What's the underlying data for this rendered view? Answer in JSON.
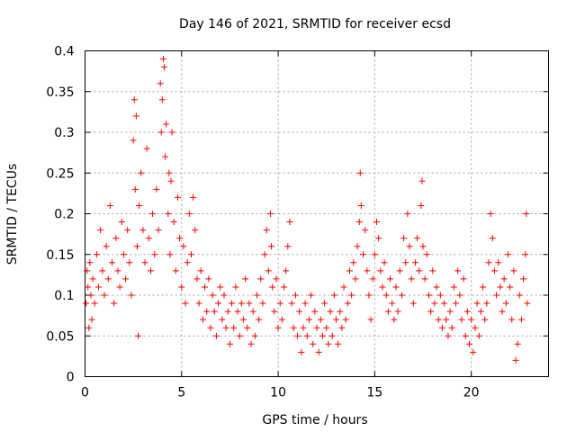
{
  "chart_data": {
    "type": "scatter",
    "title": "Day 146 of 2021, SRMTID for receiver ecsd",
    "xlabel": "GPS time / hours",
    "ylabel": "SRMTID / TECUs",
    "xlim": [
      0,
      24
    ],
    "ylim": [
      0,
      0.4
    ],
    "x_ticks": [
      0,
      5,
      10,
      15,
      20
    ],
    "x_tick_labels": [
      "0",
      "5",
      "10",
      "15",
      "20"
    ],
    "y_ticks": [
      0,
      0.05,
      0.1,
      0.15,
      0.2,
      0.25,
      0.3,
      0.35,
      0.4
    ],
    "y_tick_labels": [
      "0",
      "0.05",
      "0.1",
      "0.15",
      "0.2",
      "0.25",
      "0.3",
      "0.35",
      "0.4"
    ],
    "grid": true,
    "marker": "+",
    "color": "#ff0000",
    "series": [
      {
        "name": "SRMTID",
        "points": [
          [
            0.05,
            0.09
          ],
          [
            0.1,
            0.13
          ],
          [
            0.15,
            0.11
          ],
          [
            0.2,
            0.06
          ],
          [
            0.25,
            0.14
          ],
          [
            0.3,
            0.1
          ],
          [
            0.35,
            0.07
          ],
          [
            0.4,
            0.12
          ],
          [
            0.5,
            0.09
          ],
          [
            0.6,
            0.15
          ],
          [
            0.7,
            0.11
          ],
          [
            0.8,
            0.18
          ],
          [
            0.9,
            0.13
          ],
          [
            1.0,
            0.1
          ],
          [
            1.1,
            0.16
          ],
          [
            1.2,
            0.12
          ],
          [
            1.3,
            0.21
          ],
          [
            1.4,
            0.14
          ],
          [
            1.5,
            0.09
          ],
          [
            1.6,
            0.17
          ],
          [
            1.7,
            0.13
          ],
          [
            1.8,
            0.11
          ],
          [
            1.9,
            0.19
          ],
          [
            2.0,
            0.15
          ],
          [
            2.1,
            0.12
          ],
          [
            2.2,
            0.18
          ],
          [
            2.3,
            0.14
          ],
          [
            2.4,
            0.1
          ],
          [
            2.5,
            0.29
          ],
          [
            2.55,
            0.34
          ],
          [
            2.6,
            0.23
          ],
          [
            2.65,
            0.32
          ],
          [
            2.7,
            0.16
          ],
          [
            2.75,
            0.05
          ],
          [
            2.8,
            0.21
          ],
          [
            2.9,
            0.25
          ],
          [
            3.0,
            0.18
          ],
          [
            3.1,
            0.14
          ],
          [
            3.2,
            0.28
          ],
          [
            3.3,
            0.17
          ],
          [
            3.4,
            0.13
          ],
          [
            3.5,
            0.2
          ],
          [
            3.6,
            0.15
          ],
          [
            3.7,
            0.23
          ],
          [
            3.8,
            0.18
          ],
          [
            3.9,
            0.36
          ],
          [
            3.95,
            0.3
          ],
          [
            4.0,
            0.34
          ],
          [
            4.05,
            0.39
          ],
          [
            4.1,
            0.38
          ],
          [
            4.15,
            0.27
          ],
          [
            4.2,
            0.31
          ],
          [
            4.3,
            0.2
          ],
          [
            4.35,
            0.25
          ],
          [
            4.4,
            0.15
          ],
          [
            4.45,
            0.24
          ],
          [
            4.5,
            0.3
          ],
          [
            4.6,
            0.19
          ],
          [
            4.7,
            0.13
          ],
          [
            4.8,
            0.22
          ],
          [
            4.9,
            0.17
          ],
          [
            5.0,
            0.11
          ],
          [
            5.1,
            0.16
          ],
          [
            5.2,
            0.09
          ],
          [
            5.3,
            0.14
          ],
          [
            5.4,
            0.2
          ],
          [
            5.5,
            0.15
          ],
          [
            5.6,
            0.22
          ],
          [
            5.7,
            0.18
          ],
          [
            5.8,
            0.12
          ],
          [
            5.9,
            0.09
          ],
          [
            6.0,
            0.13
          ],
          [
            6.1,
            0.07
          ],
          [
            6.2,
            0.11
          ],
          [
            6.3,
            0.08
          ],
          [
            6.4,
            0.12
          ],
          [
            6.5,
            0.06
          ],
          [
            6.6,
            0.1
          ],
          [
            6.7,
            0.08
          ],
          [
            6.8,
            0.05
          ],
          [
            6.9,
            0.09
          ],
          [
            7.0,
            0.11
          ],
          [
            7.1,
            0.07
          ],
          [
            7.2,
            0.1
          ],
          [
            7.3,
            0.06
          ],
          [
            7.4,
            0.08
          ],
          [
            7.5,
            0.04
          ],
          [
            7.6,
            0.09
          ],
          [
            7.7,
            0.06
          ],
          [
            7.8,
            0.11
          ],
          [
            7.9,
            0.08
          ],
          [
            8.0,
            0.05
          ],
          [
            8.1,
            0.09
          ],
          [
            8.2,
            0.07
          ],
          [
            8.3,
            0.12
          ],
          [
            8.4,
            0.06
          ],
          [
            8.5,
            0.09
          ],
          [
            8.6,
            0.04
          ],
          [
            8.7,
            0.08
          ],
          [
            8.8,
            0.05
          ],
          [
            8.9,
            0.1
          ],
          [
            9.0,
            0.07
          ],
          [
            9.1,
            0.12
          ],
          [
            9.2,
            0.09
          ],
          [
            9.3,
            0.15
          ],
          [
            9.4,
            0.18
          ],
          [
            9.5,
            0.13
          ],
          [
            9.6,
            0.2
          ],
          [
            9.65,
            0.16
          ],
          [
            9.7,
            0.11
          ],
          [
            9.8,
            0.08
          ],
          [
            9.9,
            0.12
          ],
          [
            10.0,
            0.06
          ],
          [
            10.1,
            0.09
          ],
          [
            10.2,
            0.07
          ],
          [
            10.3,
            0.11
          ],
          [
            10.4,
            0.13
          ],
          [
            10.5,
            0.16
          ],
          [
            10.6,
            0.19
          ],
          [
            10.7,
            0.09
          ],
          [
            10.8,
            0.06
          ],
          [
            10.9,
            0.1
          ],
          [
            11.0,
            0.05
          ],
          [
            11.1,
            0.08
          ],
          [
            11.2,
            0.03
          ],
          [
            11.3,
            0.06
          ],
          [
            11.4,
            0.09
          ],
          [
            11.5,
            0.05
          ],
          [
            11.6,
            0.07
          ],
          [
            11.7,
            0.1
          ],
          [
            11.8,
            0.04
          ],
          [
            11.9,
            0.08
          ],
          [
            12.0,
            0.06
          ],
          [
            12.1,
            0.03
          ],
          [
            12.2,
            0.07
          ],
          [
            12.3,
            0.05
          ],
          [
            12.4,
            0.09
          ],
          [
            12.5,
            0.06
          ],
          [
            12.6,
            0.04
          ],
          [
            12.7,
            0.08
          ],
          [
            12.8,
            0.05
          ],
          [
            12.9,
            0.1
          ],
          [
            13.0,
            0.07
          ],
          [
            13.1,
            0.04
          ],
          [
            13.2,
            0.08
          ],
          [
            13.3,
            0.06
          ],
          [
            13.4,
            0.11
          ],
          [
            13.5,
            0.07
          ],
          [
            13.6,
            0.09
          ],
          [
            13.7,
            0.13
          ],
          [
            13.8,
            0.1
          ],
          [
            13.9,
            0.14
          ],
          [
            14.0,
            0.12
          ],
          [
            14.1,
            0.16
          ],
          [
            14.2,
            0.19
          ],
          [
            14.25,
            0.25
          ],
          [
            14.3,
            0.21
          ],
          [
            14.4,
            0.15
          ],
          [
            14.5,
            0.18
          ],
          [
            14.6,
            0.13
          ],
          [
            14.7,
            0.1
          ],
          [
            14.8,
            0.07
          ],
          [
            14.9,
            0.12
          ],
          [
            15.0,
            0.15
          ],
          [
            15.1,
            0.19
          ],
          [
            15.2,
            0.17
          ],
          [
            15.3,
            0.13
          ],
          [
            15.4,
            0.11
          ],
          [
            15.5,
            0.14
          ],
          [
            15.6,
            0.1
          ],
          [
            15.7,
            0.08
          ],
          [
            15.8,
            0.12
          ],
          [
            15.9,
            0.09
          ],
          [
            16.0,
            0.07
          ],
          [
            16.1,
            0.11
          ],
          [
            16.2,
            0.08
          ],
          [
            16.3,
            0.13
          ],
          [
            16.4,
            0.1
          ],
          [
            16.5,
            0.17
          ],
          [
            16.6,
            0.14
          ],
          [
            16.7,
            0.2
          ],
          [
            16.8,
            0.16
          ],
          [
            16.9,
            0.12
          ],
          [
            17.0,
            0.09
          ],
          [
            17.1,
            0.14
          ],
          [
            17.2,
            0.17
          ],
          [
            17.3,
            0.13
          ],
          [
            17.4,
            0.21
          ],
          [
            17.45,
            0.24
          ],
          [
            17.5,
            0.16
          ],
          [
            17.6,
            0.12
          ],
          [
            17.7,
            0.15
          ],
          [
            17.8,
            0.1
          ],
          [
            17.9,
            0.08
          ],
          [
            18.0,
            0.13
          ],
          [
            18.1,
            0.09
          ],
          [
            18.2,
            0.11
          ],
          [
            18.3,
            0.07
          ],
          [
            18.4,
            0.1
          ],
          [
            18.5,
            0.06
          ],
          [
            18.6,
            0.09
          ],
          [
            18.7,
            0.07
          ],
          [
            18.8,
            0.05
          ],
          [
            18.9,
            0.08
          ],
          [
            19.0,
            0.06
          ],
          [
            19.1,
            0.11
          ],
          [
            19.2,
            0.09
          ],
          [
            19.3,
            0.13
          ],
          [
            19.4,
            0.1
          ],
          [
            19.5,
            0.07
          ],
          [
            19.6,
            0.12
          ],
          [
            19.7,
            0.05
          ],
          [
            19.8,
            0.08
          ],
          [
            19.9,
            0.04
          ],
          [
            20.0,
            0.07
          ],
          [
            20.1,
            0.03
          ],
          [
            20.2,
            0.06
          ],
          [
            20.3,
            0.09
          ],
          [
            20.4,
            0.05
          ],
          [
            20.5,
            0.08
          ],
          [
            20.6,
            0.11
          ],
          [
            20.7,
            0.07
          ],
          [
            20.8,
            0.09
          ],
          [
            20.9,
            0.14
          ],
          [
            21.0,
            0.2
          ],
          [
            21.1,
            0.17
          ],
          [
            21.2,
            0.13
          ],
          [
            21.3,
            0.1
          ],
          [
            21.4,
            0.14
          ],
          [
            21.5,
            0.11
          ],
          [
            21.6,
            0.08
          ],
          [
            21.7,
            0.12
          ],
          [
            21.8,
            0.09
          ],
          [
            21.9,
            0.15
          ],
          [
            22.0,
            0.11
          ],
          [
            22.1,
            0.07
          ],
          [
            22.2,
            0.13
          ],
          [
            22.3,
            0.02
          ],
          [
            22.4,
            0.04
          ],
          [
            22.5,
            0.1
          ],
          [
            22.6,
            0.07
          ],
          [
            22.7,
            0.12
          ],
          [
            22.8,
            0.15
          ],
          [
            22.85,
            0.2
          ],
          [
            22.9,
            0.09
          ]
        ]
      }
    ]
  }
}
